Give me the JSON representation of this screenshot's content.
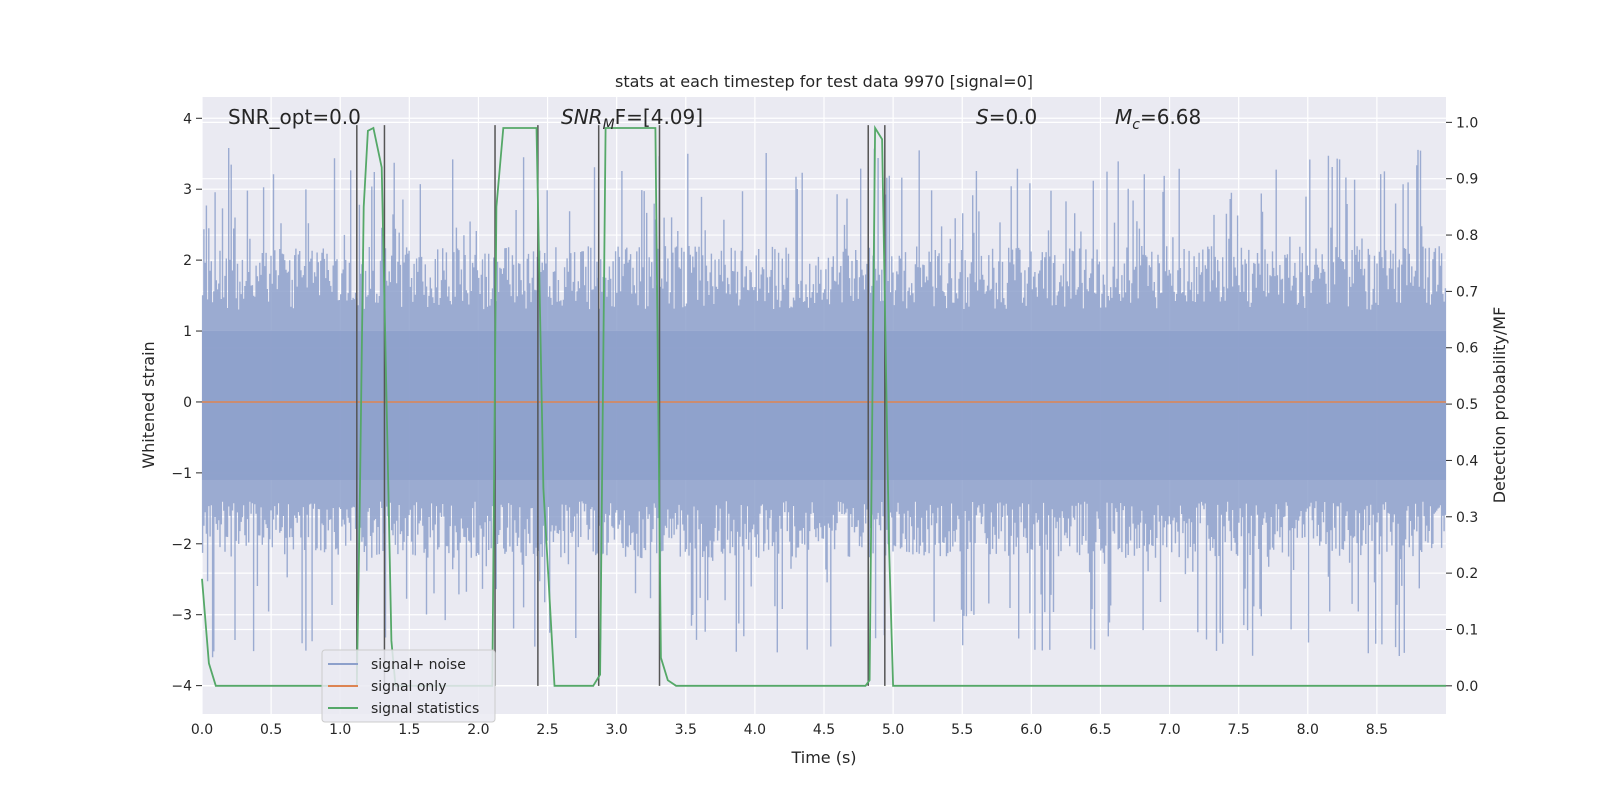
{
  "chart_data": {
    "type": "line",
    "title": "stats at each timestep for test data 9970 [signal=0]",
    "xlabel": "Time (s)",
    "ylabel_left": "Whitened strain",
    "ylabel_right": "Detection probability/MF",
    "xlim": [
      0,
      9.0
    ],
    "ylim_left": [
      -4.4,
      4.3
    ],
    "ylim_right": [
      -0.05,
      1.045
    ],
    "x_ticks": [
      "0.0",
      "0.5",
      "1.0",
      "1.5",
      "2.0",
      "2.5",
      "3.0",
      "3.5",
      "4.0",
      "4.5",
      "5.0",
      "5.5",
      "6.0",
      "6.5",
      "7.0",
      "7.5",
      "8.0",
      "8.5"
    ],
    "y_ticks_left": [
      "4",
      "3",
      "2",
      "1",
      "0",
      "−1",
      "−2",
      "−3",
      "−4"
    ],
    "y_ticks_right": [
      "1.0",
      "0.9",
      "0.8",
      "0.7",
      "0.6",
      "0.5",
      "0.4",
      "0.3",
      "0.2",
      "0.1",
      "0.0"
    ],
    "grid": true,
    "legend_position": "lower-left",
    "annotations": {
      "snr_opt": "SNR_opt=0.0",
      "snr_mf_sym": "SNR",
      "snr_mf_sub": "M",
      "snr_mf_tail": "F=[4.09]",
      "s_sym": "S",
      "s_tail": "=0.0",
      "mc_sym": "M",
      "mc_sub": "c",
      "mc_tail": "=6.68"
    },
    "series": [
      {
        "name": "signal+ noise",
        "color": "#8da0cb",
        "description_values": "whitened strain noise, roughly within [-2.5, 2.5] with spikes up to about ±3.8",
        "values": []
      },
      {
        "name": "signal only",
        "color": "#dd8452",
        "values": [
          0,
          0
        ]
      },
      {
        "name": "signal statistics",
        "color": "#55a868",
        "x": [
          0.0,
          0.05,
          0.1,
          1.12,
          1.14,
          1.17,
          1.2,
          1.24,
          1.3,
          1.34,
          1.37,
          1.4,
          2.1,
          2.13,
          2.18,
          2.42,
          2.47,
          2.55,
          2.83,
          2.88,
          2.92,
          2.97,
          3.28,
          3.32,
          3.37,
          3.43,
          4.8,
          4.83,
          4.87,
          4.92,
          4.97,
          5.0,
          9.0
        ],
        "values": [
          0.19,
          0.04,
          0.0,
          0.0,
          0.3,
          0.85,
          0.985,
          0.99,
          0.92,
          0.45,
          0.08,
          0.0,
          0.0,
          0.85,
          0.99,
          0.99,
          0.35,
          0.0,
          0.0,
          0.02,
          0.99,
          0.99,
          0.99,
          0.05,
          0.01,
          0.0,
          0.0,
          0.01,
          0.99,
          0.97,
          0.25,
          0.0,
          0.0
        ]
      }
    ],
    "vertical_markers": {
      "color": "#555555",
      "x": [
        1.12,
        1.32,
        2.12,
        2.43,
        2.87,
        3.31,
        4.82,
        4.94
      ]
    }
  }
}
